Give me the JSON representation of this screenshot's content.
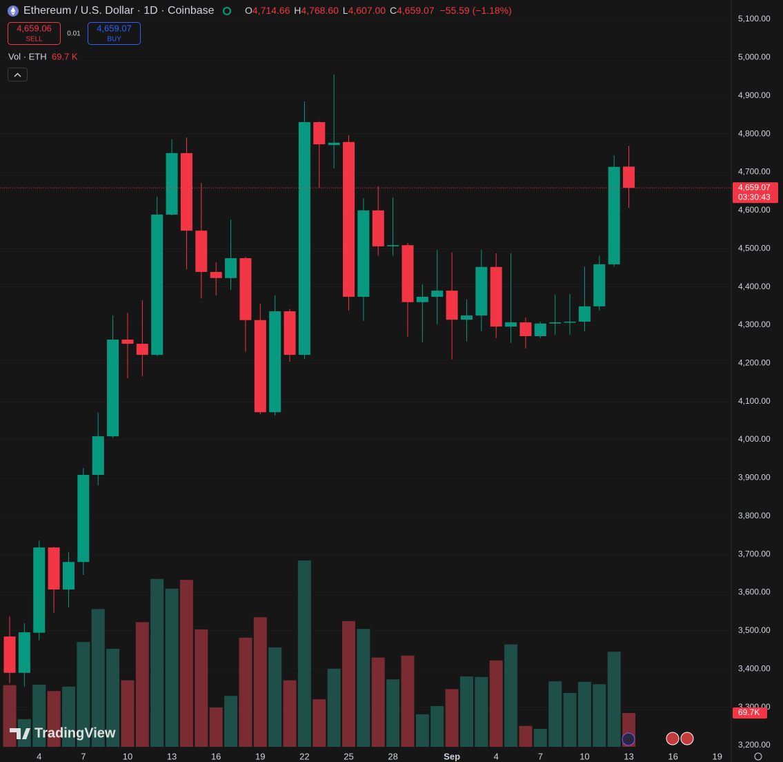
{
  "header": {
    "title": "Ethereum / U.S. Dollar · 1D · Coinbase",
    "ohlc": [
      {
        "key": "O",
        "value": "4,714.66"
      },
      {
        "key": "H",
        "value": "4,768.60"
      },
      {
        "key": "L",
        "value": "4,607.00"
      },
      {
        "key": "C",
        "value": "4,659.07"
      }
    ],
    "change": "−55.59 (−1.18%)"
  },
  "trade_panel": {
    "sell_price": "4,659.06",
    "sell": "SELL",
    "spread": "0.01",
    "buy_price": "4,659.07",
    "buy": "BUY"
  },
  "volume_legend": {
    "label": "Vol · ETH",
    "value": "69.7 K"
  },
  "branding": "TradingView",
  "chart_data": {
    "type": "candlestick",
    "categories": [
      null,
      null,
      "4",
      null,
      null,
      "7",
      null,
      null,
      "10",
      null,
      null,
      "13",
      null,
      null,
      "16",
      null,
      null,
      "19",
      null,
      null,
      "22",
      null,
      null,
      "25",
      null,
      null,
      "28",
      null,
      null,
      null,
      "Sep",
      null,
      null,
      "4",
      null,
      null,
      "7",
      null,
      null,
      "10",
      null,
      null,
      "13"
    ],
    "future_categories": [
      null,
      null,
      "16",
      null,
      null,
      "19"
    ],
    "open": [
      3485,
      3390,
      3495,
      3718,
      3608,
      3680,
      3908,
      4009,
      4262,
      4251,
      4222,
      4589,
      4750,
      4547,
      4439,
      4423,
      4475,
      4313,
      4072,
      4336,
      4222,
      4831,
      4771,
      4779,
      4374,
      4600,
      4506,
      4509,
      4360,
      4374,
      4390,
      4314,
      4325,
      4452,
      4296,
      4307,
      4271,
      4304,
      4307,
      4309,
      4349,
      4459,
      4714.66
    ],
    "high": [
      3538,
      3520,
      3736,
      3720,
      3706,
      3926,
      4071,
      4325,
      4332,
      4365,
      4636,
      4786,
      4791,
      4672,
      4464,
      4576,
      4479,
      4356,
      4378,
      4342,
      4885,
      4833,
      4956,
      4797,
      4632,
      4663,
      4634,
      4515,
      4407,
      4497,
      4490,
      4367,
      4497,
      4488,
      4488,
      4320,
      4309,
      4379,
      4381,
      4453,
      4481,
      4744,
      4768.6
    ],
    "low": [
      3363,
      3354,
      3475,
      3547,
      3561,
      3646,
      3881,
      4005,
      4161,
      4166,
      4219,
      4587,
      4446,
      4370,
      4378,
      4392,
      4230,
      4067,
      4063,
      4204,
      4211,
      4659,
      4710,
      4338,
      4311,
      4482,
      4481,
      4269,
      4255,
      4302,
      4210,
      4257,
      4284,
      4266,
      4253,
      4239,
      4266,
      4275,
      4275,
      4284,
      4338,
      4453,
      4607.0
    ],
    "close": [
      3390,
      3496,
      3718,
      3608,
      3680,
      3908,
      4009,
      4262,
      4251,
      4222,
      4589,
      4750,
      4547,
      4439,
      4423,
      4475,
      4313,
      4072,
      4336,
      4222,
      4831,
      4773,
      4777,
      4374,
      4600,
      4506,
      4509,
      4360,
      4374,
      4390,
      4314,
      4325,
      4452,
      4296,
      4307,
      4271,
      4304,
      4307,
      4309,
      4349,
      4459,
      4714,
      4659.07
    ],
    "volume": [
      127,
      57,
      128,
      115,
      124,
      216,
      284,
      202,
      137,
      257,
      346,
      326,
      344,
      242,
      81,
      105,
      225,
      267,
      205,
      137,
      384,
      98,
      161,
      259,
      243,
      184,
      139,
      188,
      67,
      84,
      119,
      145,
      144,
      178,
      211,
      43,
      37,
      135,
      111,
      134,
      129,
      196,
      69.7
    ],
    "volume_ylim": [
      0,
      1000
    ],
    "volume_tag": "69.7K",
    "last_price_label": "4,659.07",
    "countdown": "03:30:43",
    "up_color": "#089981",
    "down_color": "#f23645",
    "volume_up_color": "#1e4f48",
    "volume_down_color": "#7a2c32",
    "grid": true,
    "ylim": [
      3200,
      5100
    ],
    "yticks": [
      {
        "value": 3200,
        "label": "3,200.00"
      },
      {
        "value": 3300,
        "label": "3,300.00"
      },
      {
        "value": 3400,
        "label": "3,400.00"
      },
      {
        "value": 3500,
        "label": "3,500.00"
      },
      {
        "value": 3600,
        "label": "3,600.00"
      },
      {
        "value": 3700,
        "label": "3,700.00"
      },
      {
        "value": 3800,
        "label": "3,800.00"
      },
      {
        "value": 3900,
        "label": "3,900.00"
      },
      {
        "value": 4000,
        "label": "4,000.00"
      },
      {
        "value": 4100,
        "label": "4,100.00"
      },
      {
        "value": 4200,
        "label": "4,200.00"
      },
      {
        "value": 4300,
        "label": "4,300.00"
      },
      {
        "value": 4400,
        "label": "4,400.00"
      },
      {
        "value": 4500,
        "label": "4,500.00"
      },
      {
        "value": 4600,
        "label": "4,600.00"
      },
      {
        "value": 4700,
        "label": "4,700.00"
      },
      {
        "value": 4800,
        "label": "4,800.00"
      },
      {
        "value": 4900,
        "label": "4,900.00"
      },
      {
        "value": 5000,
        "label": "5,000.00"
      },
      {
        "value": 5100,
        "label": "5,100.00"
      }
    ]
  }
}
